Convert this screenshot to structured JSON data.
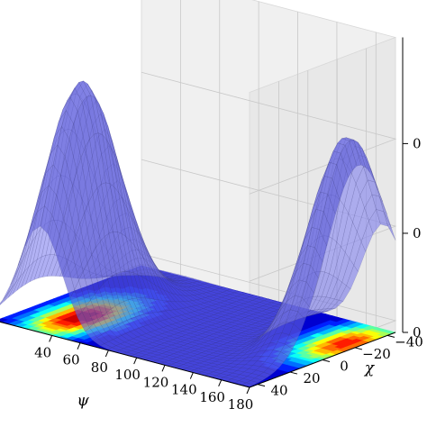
{
  "chart_data": {
    "type": "surface",
    "title": "",
    "xlabel": "ψ",
    "ylabel": "χ",
    "zlabel": "",
    "x_ticks": [
      "40",
      "60",
      "80",
      "100",
      "120",
      "140",
      "160",
      "180"
    ],
    "y_ticks": [
      "−40",
      "−20",
      "0",
      "20",
      "40"
    ],
    "z_ticks": [
      "0",
      "0",
      "0"
    ],
    "xlim": [
      0,
      180
    ],
    "ylim": [
      -45,
      45
    ],
    "colormap": "jet",
    "grid": true,
    "surface_color": "#6d6de8",
    "peaks": [
      {
        "psi": 32,
        "chi": 20,
        "height": 1.0
      },
      {
        "psi": 172,
        "chi": -22,
        "height": 0.88
      }
    ]
  }
}
